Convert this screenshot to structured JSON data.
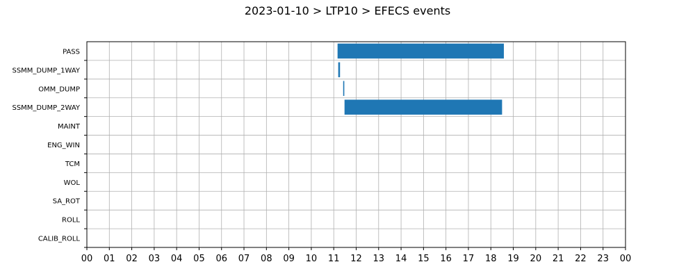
{
  "chart_data": {
    "type": "bar",
    "orientation": "horizontal-timeline",
    "title": "2023-01-10 > LTP10 > EFECS events",
    "xlabel": "",
    "ylabel": "",
    "x_unit": "hour",
    "xlim": [
      0,
      24
    ],
    "x_tick_labels": [
      "00",
      "01",
      "02",
      "03",
      "04",
      "05",
      "06",
      "07",
      "08",
      "09",
      "10",
      "11",
      "12",
      "13",
      "14",
      "15",
      "16",
      "17",
      "18",
      "19",
      "20",
      "21",
      "22",
      "23",
      "00"
    ],
    "categories": [
      "PASS",
      "SSMM_DUMP_1WAY",
      "OMM_DUMP",
      "SSMM_DUMP_2WAY",
      "MAINT",
      "ENG_WIN",
      "TCM",
      "WOL",
      "SA_ROT",
      "ROLL",
      "CALIB_ROLL"
    ],
    "events": [
      {
        "category": "PASS",
        "start": 11.17,
        "end": 18.58
      },
      {
        "category": "SSMM_DUMP_1WAY",
        "start": 11.2,
        "end": 11.28
      },
      {
        "category": "OMM_DUMP",
        "start": 11.42,
        "end": 11.47
      },
      {
        "category": "SSMM_DUMP_2WAY",
        "start": 11.48,
        "end": 18.5
      }
    ],
    "bar_color": "#1f77b4",
    "grid": true,
    "legend": "none"
  }
}
